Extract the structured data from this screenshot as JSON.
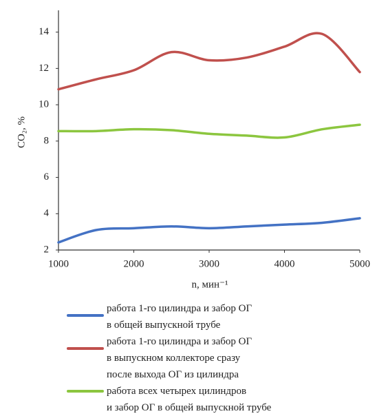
{
  "chart_data": {
    "type": "line",
    "x_label": "n, мин⁻¹",
    "y_label": "CO₂, %",
    "x": [
      1000,
      1500,
      2000,
      2500,
      3000,
      3500,
      4000,
      4500,
      5000
    ],
    "series": [
      {
        "name": "работа 1-го цилиндра и забор ОГ\nв общей выпускной трубе",
        "color": "#4472c4",
        "values": [
          2.42,
          3.1,
          3.2,
          3.3,
          3.2,
          3.3,
          3.4,
          3.5,
          3.75
        ]
      },
      {
        "name": "работа 1-го цилиндра и забор ОГ\nв выпускном коллекторе сразу\nпосле выхода ОГ из цилиндра",
        "color": "#c0504d",
        "values": [
          10.85,
          11.4,
          11.9,
          12.9,
          12.45,
          12.6,
          13.2,
          13.9,
          11.8
        ]
      },
      {
        "name": "работа всех четырех цилиндров\nи забор ОГ в общей выпускной трубе",
        "color": "#8cc63f",
        "values": [
          8.55,
          8.55,
          8.65,
          8.6,
          8.4,
          8.3,
          8.2,
          8.65,
          8.9
        ]
      }
    ],
    "xlim": [
      1000,
      5000
    ],
    "xticks": [
      1000,
      2000,
      3000,
      4000,
      5000
    ],
    "ylim": [
      2,
      15.2
    ],
    "yticks": [
      2,
      4,
      6,
      8,
      10,
      12,
      14
    ]
  }
}
